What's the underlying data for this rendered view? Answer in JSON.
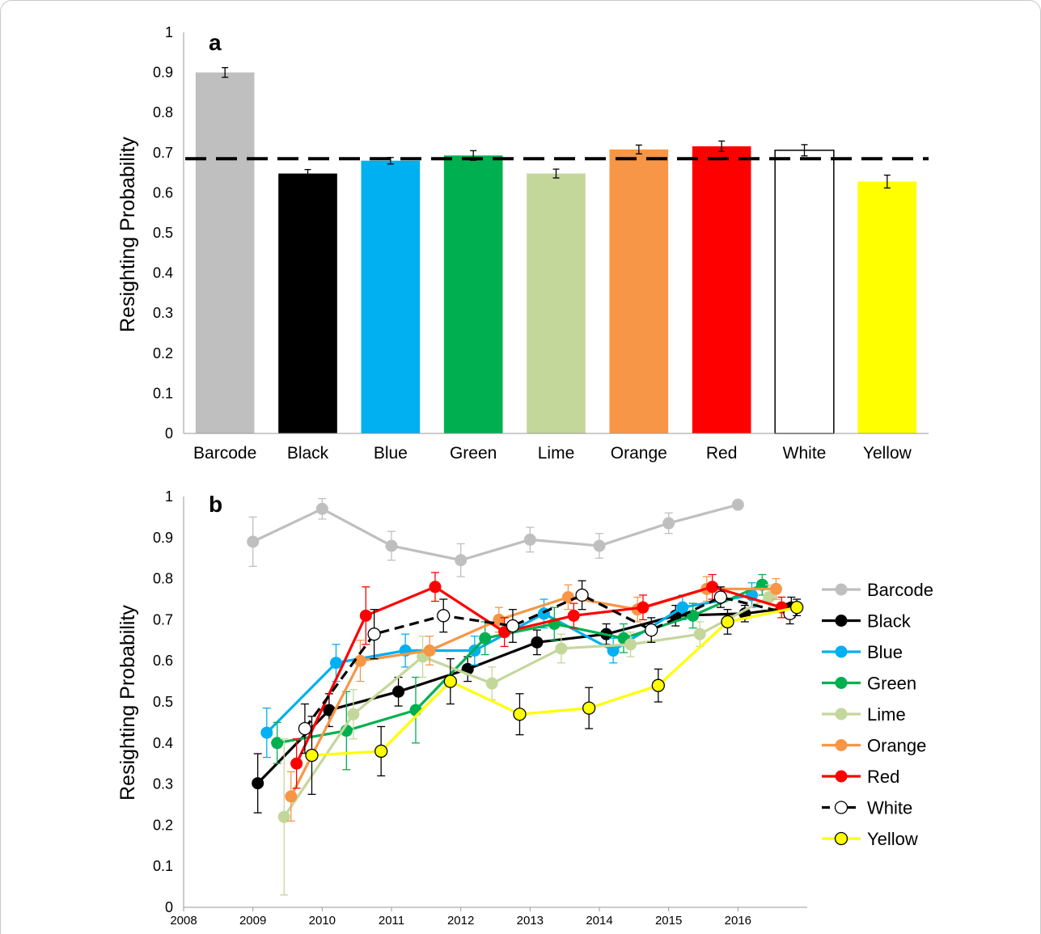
{
  "chart_data": [
    {
      "type": "bar",
      "panel_label": "a",
      "ylabel": "Resighting Probability",
      "ylim": [
        0,
        1
      ],
      "yticks": [
        "0",
        "0.1",
        "0.2",
        "0.3",
        "0.4",
        "0.5",
        "0.6",
        "0.7",
        "0.8",
        "0.9",
        "1"
      ],
      "categories": [
        "Barcode",
        "Black",
        "Blue",
        "Green",
        "Lime",
        "Orange",
        "Red",
        "White",
        "Yellow"
      ],
      "values": [
        0.9,
        0.648,
        0.68,
        0.693,
        0.648,
        0.708,
        0.716,
        0.706,
        0.628
      ],
      "errors": [
        0.012,
        0.01,
        0.008,
        0.012,
        0.011,
        0.011,
        0.013,
        0.014,
        0.016
      ],
      "colors": [
        "#bfbfbf",
        "#000000",
        "#00b0f0",
        "#00b050",
        "#c4d79b",
        "#f79646",
        "#ff0000",
        "#ffffff",
        "#ffff00"
      ],
      "reference_line": 0.685,
      "grid": false
    },
    {
      "type": "line",
      "panel_label": "b",
      "ylabel": "Resighting Probability",
      "ylim": [
        0,
        1
      ],
      "xlim": [
        2008,
        2017
      ],
      "yticks": [
        "0",
        "0.1",
        "0.2",
        "0.3",
        "0.4",
        "0.5",
        "0.6",
        "0.7",
        "0.8",
        "0.9",
        "1"
      ],
      "xticks": [
        "2008",
        "2009",
        "2010",
        "2011",
        "2012",
        "2013",
        "2014",
        "2015",
        "2016"
      ],
      "legend_position": "right",
      "grid": false,
      "series": [
        {
          "name": "Barcode",
          "color": "#bfbfbf",
          "marker": "filled",
          "x": [
            2009.0,
            2010.0,
            2011.0,
            2012.0,
            2013.0,
            2014.0,
            2015.0,
            2016.0
          ],
          "y": [
            0.89,
            0.97,
            0.88,
            0.845,
            0.895,
            0.88,
            0.935,
            0.98
          ],
          "err": [
            0.06,
            0.025,
            0.035,
            0.04,
            0.03,
            0.03,
            0.025,
            0.0
          ]
        },
        {
          "name": "Black",
          "color": "#000000",
          "marker": "filled",
          "x": [
            2009.07,
            2010.1,
            2011.1,
            2012.1,
            2013.1,
            2014.1,
            2015.1,
            2016.1,
            2016.77
          ],
          "y": [
            0.302,
            0.48,
            0.525,
            0.58,
            0.645,
            0.665,
            0.71,
            0.715,
            0.73
          ],
          "err": [
            0.072,
            0.04,
            0.035,
            0.03,
            0.03,
            0.025,
            0.025,
            0.02,
            0.025
          ]
        },
        {
          "name": "Blue",
          "color": "#00b0f0",
          "marker": "filled",
          "x": [
            2009.2,
            2010.2,
            2011.2,
            2012.2,
            2013.2,
            2014.2,
            2015.2,
            2016.2
          ],
          "y": [
            0.425,
            0.595,
            0.625,
            0.625,
            0.715,
            0.625,
            0.73,
            0.76
          ],
          "err": [
            0.06,
            0.045,
            0.04,
            0.035,
            0.035,
            0.03,
            0.03,
            0.03
          ]
        },
        {
          "name": "Green",
          "color": "#00b050",
          "marker": "filled",
          "x": [
            2009.35,
            2010.35,
            2011.35,
            2012.35,
            2013.35,
            2014.35,
            2015.35,
            2016.35
          ],
          "y": [
            0.4,
            0.43,
            0.48,
            0.655,
            0.69,
            0.655,
            0.71,
            0.785
          ],
          "err": [
            0.05,
            0.095,
            0.08,
            0.04,
            0.04,
            0.035,
            0.03,
            0.025
          ]
        },
        {
          "name": "Lime",
          "color": "#c4d79b",
          "marker": "filled",
          "x": [
            2009.45,
            2010.45,
            2011.45,
            2012.45,
            2013.45,
            2014.45,
            2015.45,
            2016.45
          ],
          "y": [
            0.22,
            0.47,
            0.61,
            0.545,
            0.63,
            0.64,
            0.665,
            0.755
          ],
          "err": [
            0.19,
            0.06,
            0.05,
            0.04,
            0.035,
            0.03,
            0.03,
            0.03
          ]
        },
        {
          "name": "Orange",
          "color": "#f79646",
          "marker": "filled",
          "x": [
            2009.55,
            2010.55,
            2011.55,
            2012.55,
            2013.55,
            2014.55,
            2015.55,
            2016.55
          ],
          "y": [
            0.27,
            0.6,
            0.625,
            0.7,
            0.755,
            0.725,
            0.775,
            0.775
          ],
          "err": [
            0.06,
            0.05,
            0.035,
            0.03,
            0.03,
            0.03,
            0.03,
            0.025
          ]
        },
        {
          "name": "Red",
          "color": "#ff0000",
          "marker": "filled",
          "x": [
            2009.63,
            2010.63,
            2011.63,
            2012.63,
            2013.63,
            2014.63,
            2015.63,
            2016.63
          ],
          "y": [
            0.35,
            0.71,
            0.78,
            0.67,
            0.71,
            0.73,
            0.78,
            0.73
          ],
          "err": [
            0.06,
            0.07,
            0.035,
            0.035,
            0.03,
            0.03,
            0.03,
            0.025
          ]
        },
        {
          "name": "White",
          "color": "#000000",
          "marker": "open",
          "dashed": true,
          "x": [
            2009.75,
            2010.75,
            2011.75,
            2012.75,
            2013.75,
            2014.75,
            2015.75,
            2016.75
          ],
          "y": [
            0.435,
            0.665,
            0.71,
            0.685,
            0.76,
            0.675,
            0.755,
            0.715
          ],
          "err": [
            0.06,
            0.06,
            0.04,
            0.04,
            0.035,
            0.03,
            0.025,
            0.025
          ]
        },
        {
          "name": "Yellow",
          "color": "#ffff00",
          "marker": "yellow",
          "x": [
            2009.85,
            2010.85,
            2011.85,
            2012.85,
            2013.85,
            2014.85,
            2015.85,
            2016.85
          ],
          "y": [
            0.37,
            0.38,
            0.55,
            0.47,
            0.485,
            0.54,
            0.695,
            0.73
          ],
          "err": [
            0.095,
            0.06,
            0.055,
            0.05,
            0.05,
            0.04,
            0.03,
            0.02
          ]
        }
      ]
    }
  ]
}
